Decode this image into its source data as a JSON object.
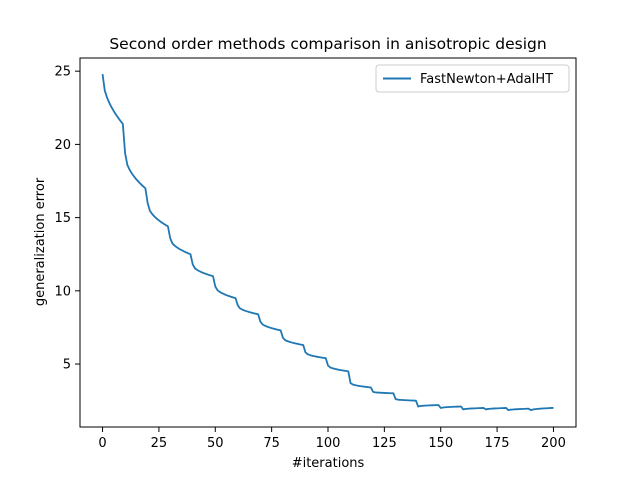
{
  "chart_data": {
    "type": "line",
    "title": "Second order methods comparison in anisotropic design",
    "xlabel": "#iterations",
    "ylabel": "generalization error",
    "xlim": [
      -10,
      210
    ],
    "ylim": [
      0.7,
      25.9
    ],
    "xticks": [
      0,
      25,
      50,
      75,
      100,
      125,
      150,
      175,
      200
    ],
    "yticks": [
      5,
      10,
      15,
      20,
      25
    ],
    "grid": false,
    "legend_position": "top-right",
    "series": [
      {
        "name": "FastNewton+AdaIHT",
        "color": "#1f77b4",
        "segment_length": 10,
        "segments": [
          {
            "start": 0,
            "y_start": 24.8,
            "y_end": 21.4
          },
          {
            "start": 10,
            "y_start": 19.4,
            "y_end": 17.0
          },
          {
            "start": 20,
            "y_start": 16.0,
            "y_end": 14.4
          },
          {
            "start": 30,
            "y_start": 13.6,
            "y_end": 12.5
          },
          {
            "start": 40,
            "y_start": 11.8,
            "y_end": 11.0
          },
          {
            "start": 50,
            "y_start": 10.3,
            "y_end": 9.5
          },
          {
            "start": 60,
            "y_start": 9.0,
            "y_end": 8.4
          },
          {
            "start": 70,
            "y_start": 7.9,
            "y_end": 7.3
          },
          {
            "start": 80,
            "y_start": 6.8,
            "y_end": 6.3
          },
          {
            "start": 90,
            "y_start": 5.8,
            "y_end": 5.4
          },
          {
            "start": 100,
            "y_start": 4.9,
            "y_end": 4.5
          },
          {
            "start": 110,
            "y_start": 3.7,
            "y_end": 3.4
          },
          {
            "start": 120,
            "y_start": 3.1,
            "y_end": 3.0
          },
          {
            "start": 130,
            "y_start": 2.6,
            "y_end": 2.5
          },
          {
            "start": 140,
            "y_start": 2.1,
            "y_end": 2.2
          },
          {
            "start": 150,
            "y_start": 2.0,
            "y_end": 2.1
          },
          {
            "start": 160,
            "y_start": 1.9,
            "y_end": 2.0
          },
          {
            "start": 170,
            "y_start": 1.9,
            "y_end": 2.0
          },
          {
            "start": 180,
            "y_start": 1.85,
            "y_end": 1.95
          },
          {
            "start": 190,
            "y_start": 1.85,
            "y_end": 2.0
          }
        ]
      }
    ]
  }
}
